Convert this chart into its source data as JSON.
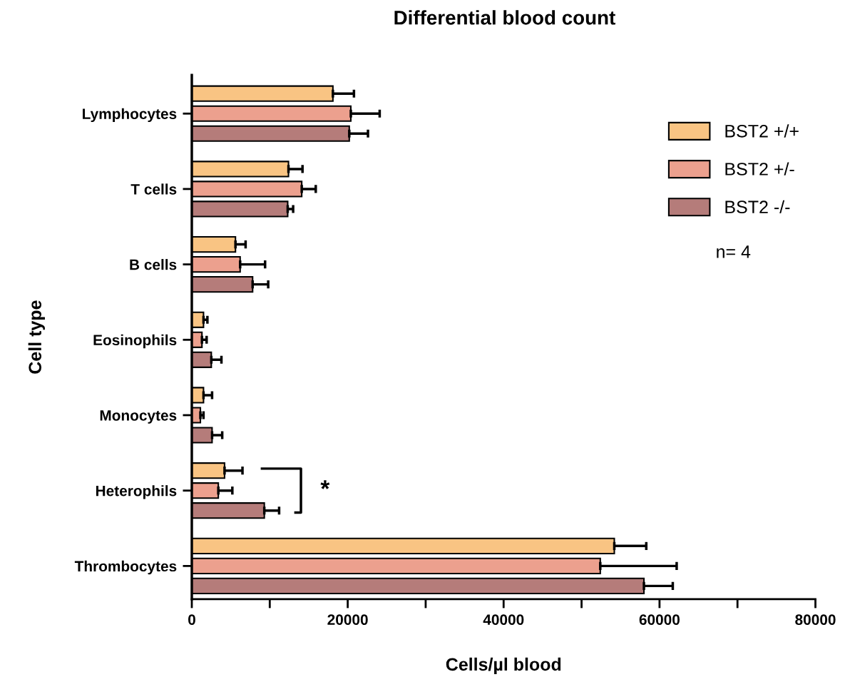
{
  "chart_data": {
    "type": "bar",
    "orientation": "horizontal",
    "title": "Differential blood count",
    "xlabel": "Cells/µl blood",
    "ylabel": "Cell type",
    "categories": [
      "Lymphocytes",
      "T cells",
      "B cells",
      "Eosinophils",
      "Monocytes",
      "Heterophils",
      "Thrombocytes"
    ],
    "series": [
      {
        "name": "BST2 +/+",
        "color": "#f9c483",
        "values": [
          18100,
          12400,
          5600,
          1500,
          1500,
          4200,
          54200
        ],
        "errors": [
          [
            18100,
            20800
          ],
          [
            12400,
            14200
          ],
          [
            5600,
            6900
          ],
          [
            1500,
            2000
          ],
          [
            1500,
            2600
          ],
          [
            4200,
            6500
          ],
          [
            54200,
            58300
          ]
        ]
      },
      {
        "name": "BST2 +/-",
        "color": "#eca08e",
        "values": [
          20400,
          14100,
          6200,
          1300,
          1100,
          3400,
          52400
        ],
        "errors": [
          [
            20400,
            24100
          ],
          [
            14100,
            15900
          ],
          [
            6200,
            9400
          ],
          [
            1300,
            1900
          ],
          [
            1100,
            1500
          ],
          [
            3400,
            5200
          ],
          [
            52400,
            62200
          ]
        ]
      },
      {
        "name": "BST2 -/-",
        "color": "#b57c7a",
        "values": [
          20200,
          12300,
          7800,
          2500,
          2600,
          9300,
          58000
        ],
        "errors": [
          [
            20200,
            22600
          ],
          [
            12300,
            13000
          ],
          [
            7800,
            9800
          ],
          [
            2500,
            3800
          ],
          [
            2600,
            3900
          ],
          [
            9300,
            11200
          ],
          [
            58000,
            61700
          ]
        ]
      }
    ],
    "xlim": [
      0,
      80000
    ],
    "xticks": [
      0,
      {
        "value": 10000,
        "label": null
      },
      20000,
      {
        "value": 30000,
        "label": null
      },
      40000,
      {
        "value": 50000,
        "label": null
      },
      60000,
      {
        "value": 70000,
        "label": null
      },
      80000
    ],
    "legend": "top right",
    "grid": false,
    "annotations": [
      "n= 4",
      "*"
    ]
  }
}
